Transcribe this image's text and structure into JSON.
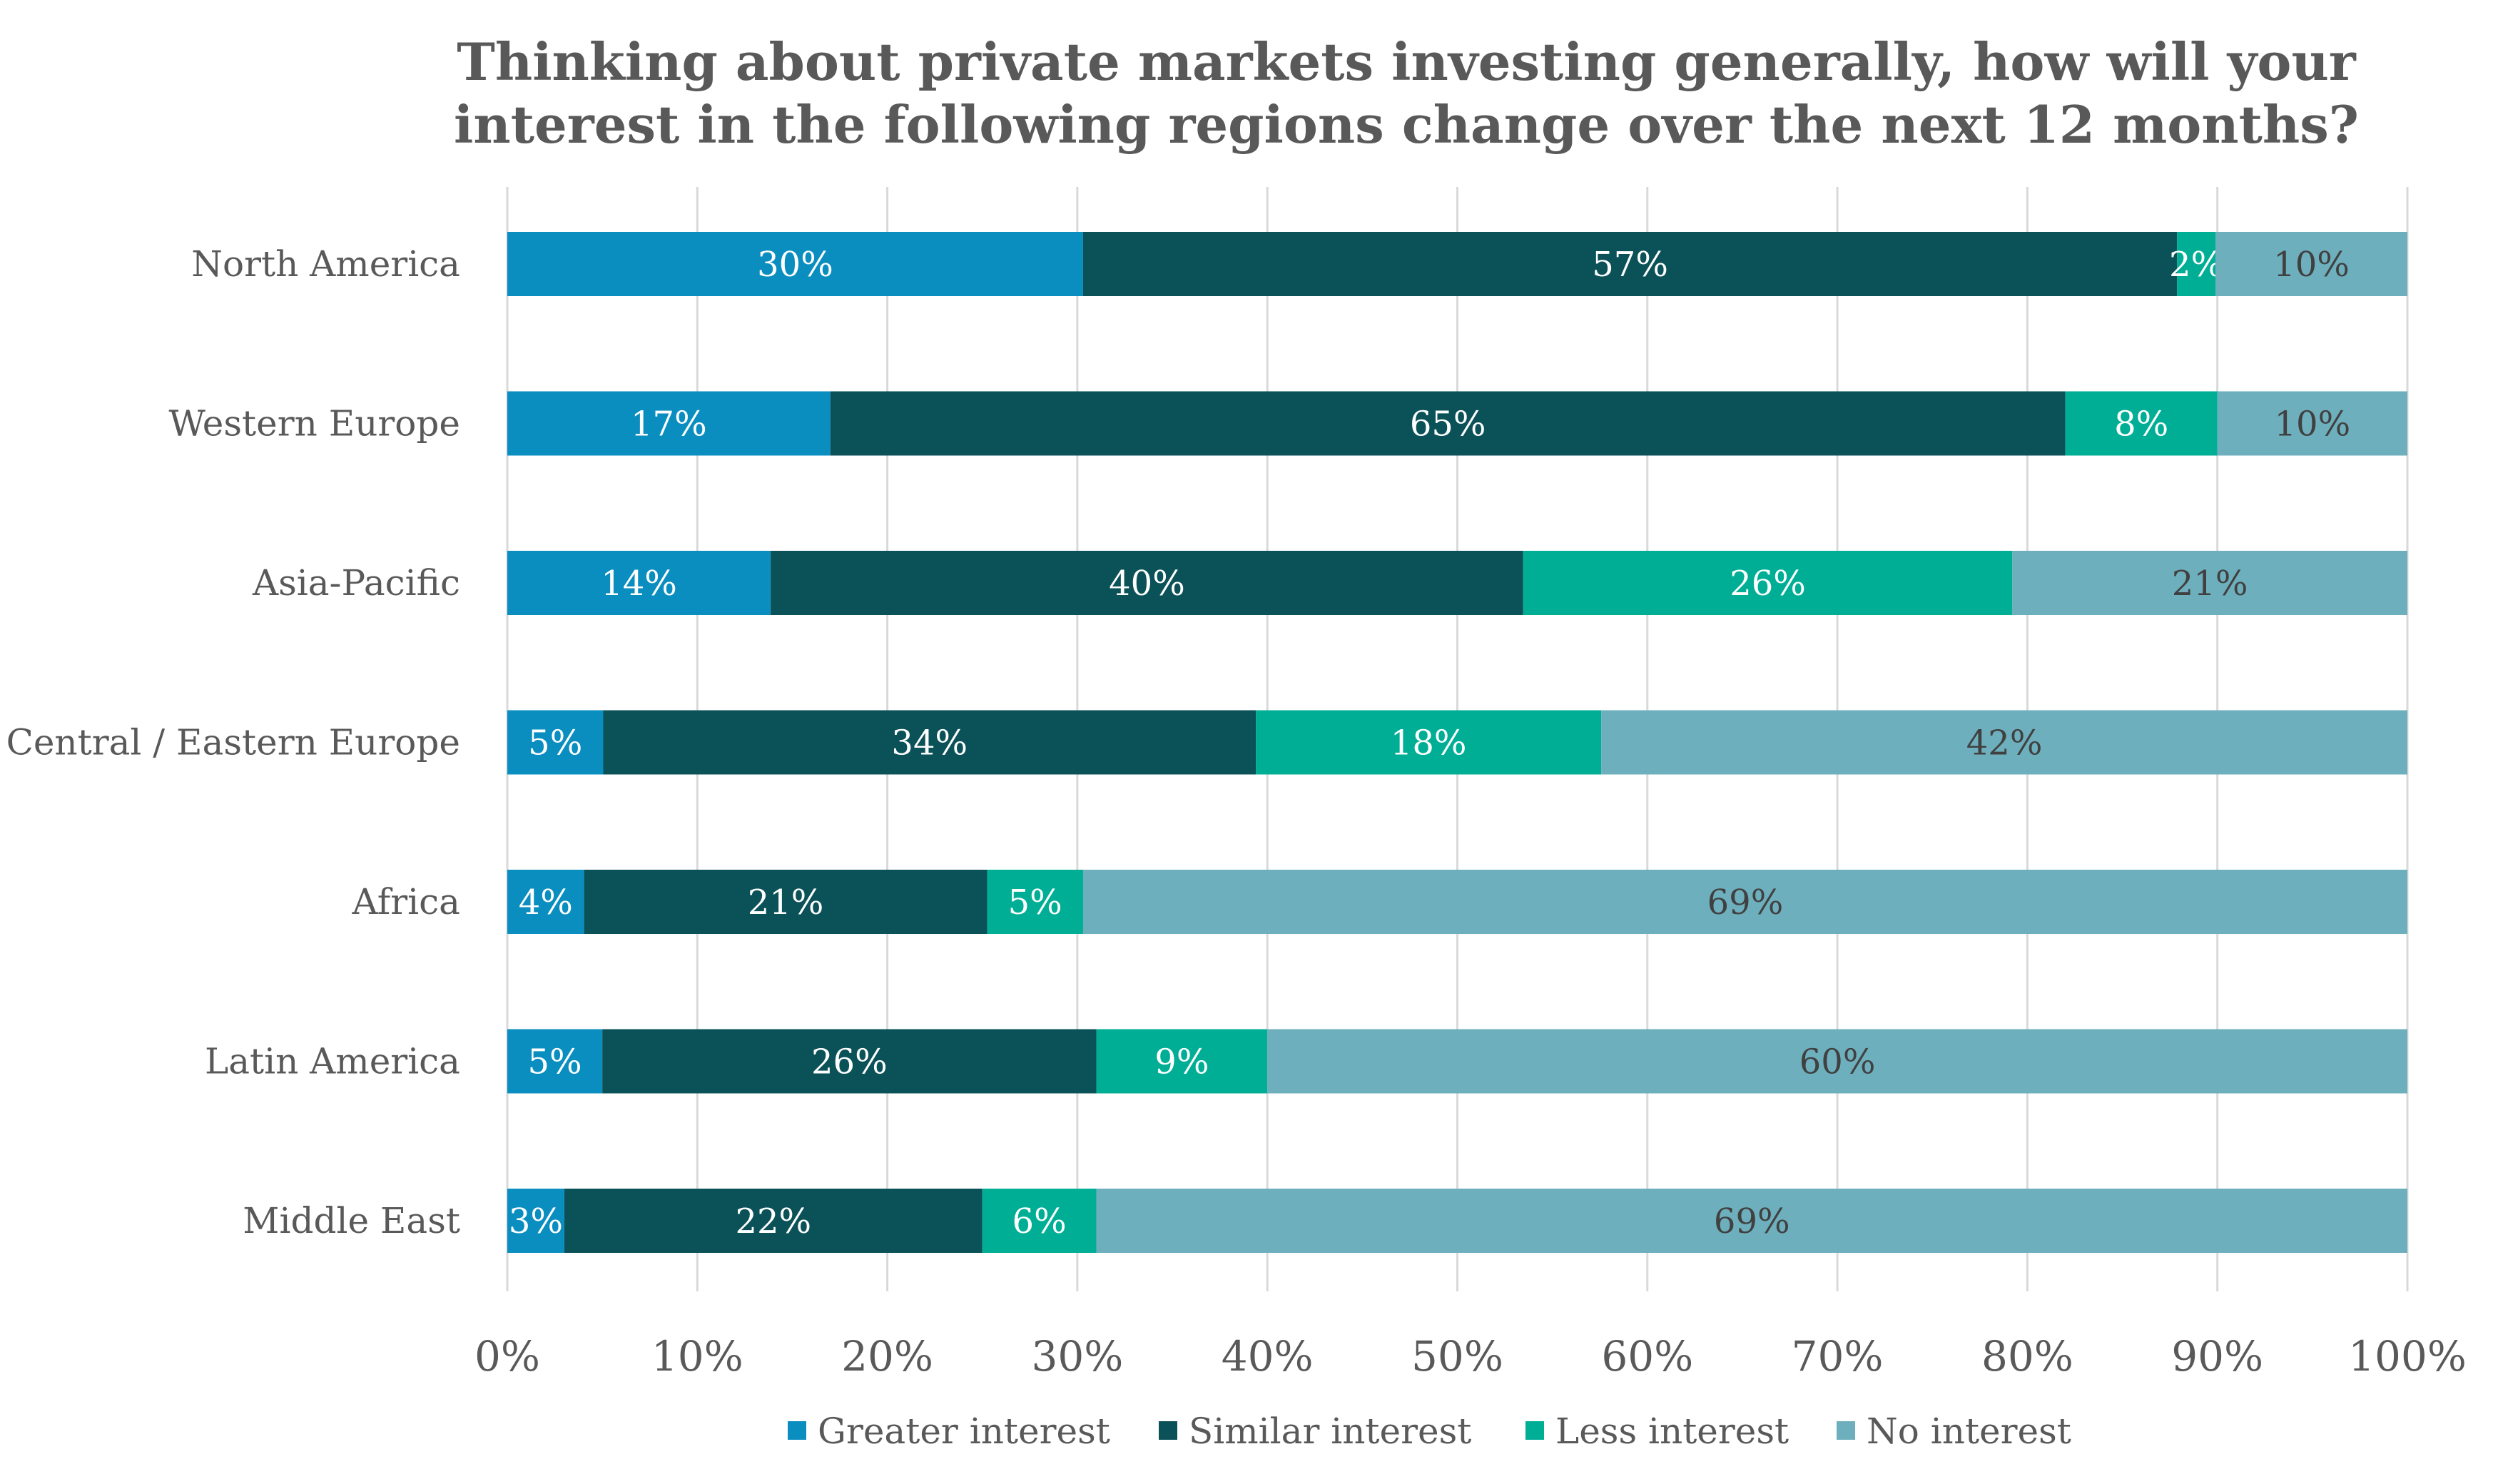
{
  "chart_data": {
    "type": "bar",
    "orientation": "horizontal",
    "stacked": "percent",
    "title": "Thinking about private markets investing generally, how will your interest in the following regions change over the next 12 months?",
    "title_lines": [
      "Thinking about private markets investing generally, how will your",
      "interest in the following regions change over the next 12 months?"
    ],
    "categories": [
      "North America",
      "Western Europe",
      "Asia-Pacific",
      "Central / Eastern Europe",
      "Africa",
      "Latin America",
      "Middle East"
    ],
    "series": [
      {
        "name": "Greater interest",
        "color": "#0A8EC0",
        "label_color": "#ffffff",
        "values": [
          30,
          17,
          14,
          5,
          4,
          5,
          3
        ]
      },
      {
        "name": "Similar interest",
        "color": "#0B5158",
        "label_color": "#ffffff",
        "values": [
          57,
          65,
          40,
          34,
          21,
          26,
          22
        ]
      },
      {
        "name": "Less interest",
        "color": "#00AE95",
        "label_color": "#ffffff",
        "values": [
          2,
          8,
          26,
          18,
          5,
          9,
          6
        ]
      },
      {
        "name": "No interest",
        "color": "#6EAFBD",
        "label_color": "#404040",
        "values": [
          10,
          10,
          21,
          42,
          69,
          60,
          69
        ]
      }
    ],
    "xlim": [
      0,
      100
    ],
    "x_ticks": [
      "0%",
      "10%",
      "20%",
      "30%",
      "40%",
      "50%",
      "60%",
      "70%",
      "80%",
      "90%",
      "100%"
    ],
    "grid": "vertical",
    "legend_position": "bottom"
  }
}
